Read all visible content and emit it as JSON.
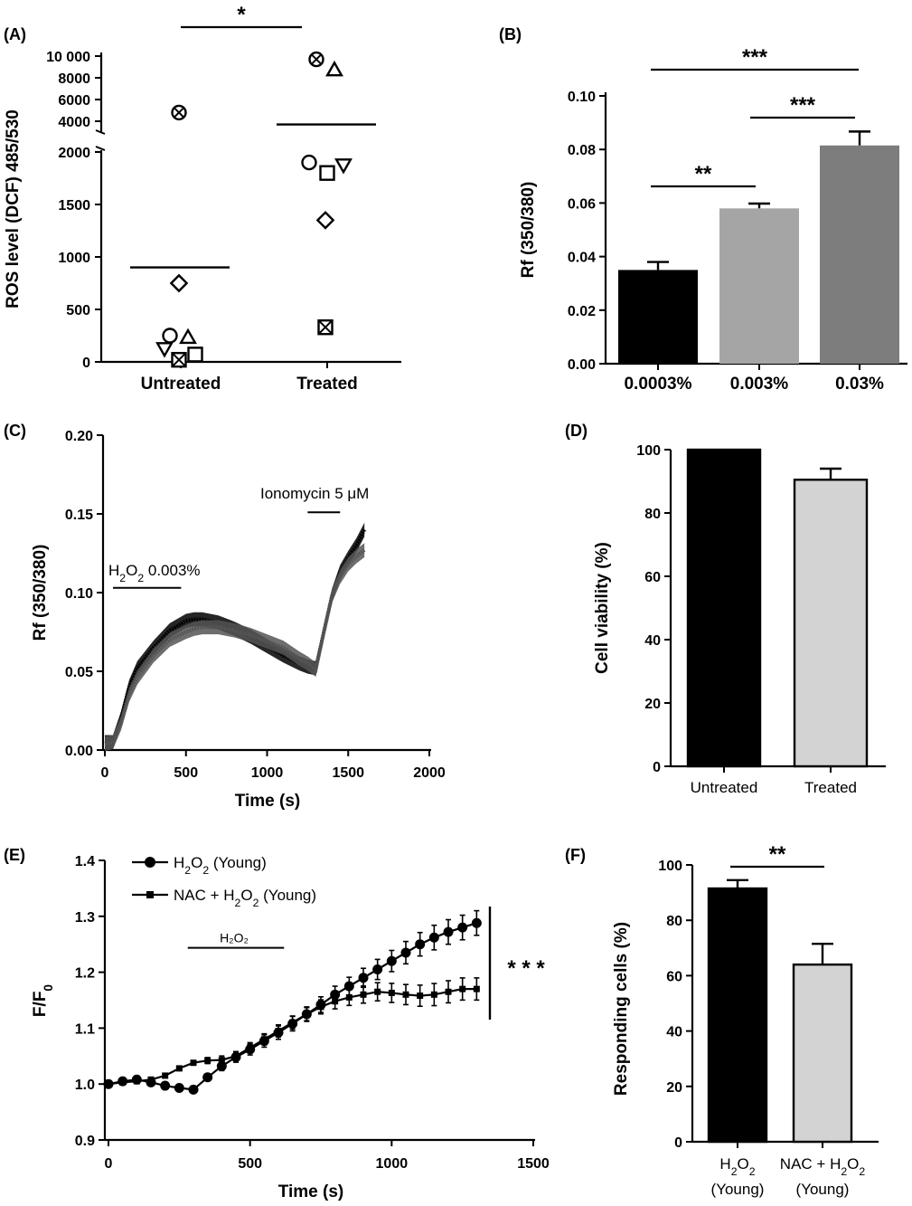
{
  "chart_data": [
    {
      "panel": "(A)",
      "type": "scatter",
      "ylabel": "ROS level (DCF) 485/530",
      "categories": [
        "Untreated",
        "Treated"
      ],
      "y_ticks_lower": [
        "0",
        "500",
        "1000",
        "1500",
        "2000"
      ],
      "y_ticks_upper": [
        "4000",
        "6000",
        "8000",
        "10 000"
      ],
      "ylim_lower": [
        0,
        2000
      ],
      "ylim_upper": [
        3000,
        10000
      ],
      "axis_break": true,
      "points": [
        {
          "category": "Untreated",
          "marker": "circle-x",
          "y": 4800
        },
        {
          "category": "Untreated",
          "marker": "diamond",
          "y": 750
        },
        {
          "category": "Untreated",
          "marker": "circle",
          "y": 250
        },
        {
          "category": "Untreated",
          "marker": "triangle",
          "y": 230
        },
        {
          "category": "Untreated",
          "marker": "triangle-down",
          "y": 130
        },
        {
          "category": "Untreated",
          "marker": "square",
          "y": 70
        },
        {
          "category": "Untreated",
          "marker": "square-x",
          "y": 20
        },
        {
          "category": "Treated",
          "marker": "circle-x",
          "y": 9700
        },
        {
          "category": "Treated",
          "marker": "triangle",
          "y": 8700
        },
        {
          "category": "Treated",
          "marker": "circle",
          "y": 1900
        },
        {
          "category": "Treated",
          "marker": "square",
          "y": 1800
        },
        {
          "category": "Treated",
          "marker": "triangle-down",
          "y": 1880
        },
        {
          "category": "Treated",
          "marker": "diamond",
          "y": 1350
        },
        {
          "category": "Treated",
          "marker": "square-x",
          "y": 330
        }
      ],
      "means": [
        {
          "category": "Untreated",
          "y": 900
        },
        {
          "category": "Treated",
          "y": 3700
        }
      ],
      "significance": "*"
    },
    {
      "panel": "(B)",
      "type": "bar",
      "ylabel": "Rf (350/380)",
      "categories": [
        "0.0003%",
        "0.003%",
        "0.03%"
      ],
      "values": [
        0.035,
        0.058,
        0.0815
      ],
      "errors": [
        0.003,
        0.0018,
        0.0052
      ],
      "colors": [
        "#000000",
        "#a5a5a5",
        "#7d7d7d"
      ],
      "ylim": [
        0,
        0.1
      ],
      "y_ticks": [
        "0.00",
        "0.02",
        "0.04",
        "0.06",
        "0.08",
        "0.10"
      ],
      "significance": [
        {
          "between": [
            "0.0003%",
            "0.003%"
          ],
          "label": "**"
        },
        {
          "between": [
            "0.003%",
            "0.03%"
          ],
          "label": "***"
        },
        {
          "between": [
            "0.0003%",
            "0.03%"
          ],
          "label": "***"
        }
      ]
    },
    {
      "panel": "(C)",
      "type": "line",
      "xlabel": "Time (s)",
      "ylabel": "Rf (350/380)",
      "xlim": [
        0,
        2000
      ],
      "ylim": [
        0,
        0.2
      ],
      "x_ticks": [
        "0",
        "500",
        "1000",
        "1500",
        "2000"
      ],
      "y_ticks": [
        "0.00",
        "0.05",
        "0.10",
        "0.15",
        "0.20"
      ],
      "x": [
        0,
        50,
        100,
        150,
        200,
        300,
        400,
        500,
        550,
        600,
        700,
        800,
        900,
        1000,
        1100,
        1200,
        1250,
        1300,
        1350,
        1400,
        1450,
        1500,
        1550,
        1600
      ],
      "series": [
        {
          "values": [
            0.005,
            0.005,
            0.02,
            0.04,
            0.052,
            0.065,
            0.076,
            0.082,
            0.083,
            0.083,
            0.081,
            0.077,
            0.072,
            0.066,
            0.06,
            0.055,
            0.053,
            0.052,
            0.075,
            0.098,
            0.113,
            0.122,
            0.13,
            0.14
          ]
        },
        {
          "values": [
            0.004,
            0.005,
            0.017,
            0.035,
            0.046,
            0.06,
            0.07,
            0.075,
            0.077,
            0.078,
            0.078,
            0.076,
            0.073,
            0.069,
            0.065,
            0.058,
            0.055,
            0.051,
            0.075,
            0.098,
            0.11,
            0.118,
            0.123,
            0.127
          ]
        }
      ],
      "annotations": [
        {
          "label_parts": [
            "H",
            "2",
            "O",
            "2",
            " 0.003%"
          ],
          "x_start": 50,
          "x_end": 470,
          "y": 0.103
        },
        {
          "label": "Ionomycin 5 μM",
          "x_start": 1250,
          "x_end": 1450,
          "y": 0.151
        }
      ]
    },
    {
      "panel": "(D)",
      "type": "bar",
      "ylabel": "Cell viability (%)",
      "categories": [
        "Untreated",
        "Treated"
      ],
      "values": [
        100,
        90.5
      ],
      "errors": [
        0,
        3.5
      ],
      "colors": [
        "#000000",
        "#d3d3d3"
      ],
      "ylim": [
        0,
        100
      ],
      "y_ticks": [
        "0",
        "20",
        "40",
        "60",
        "80",
        "100"
      ]
    },
    {
      "panel": "(E)",
      "type": "line",
      "xlabel": "Time (s)",
      "ylabel_parts": [
        "F/F",
        "0"
      ],
      "xlim": [
        0,
        1500
      ],
      "ylim": [
        0.9,
        1.4
      ],
      "x_ticks": [
        "0",
        "500",
        "1000",
        "1500"
      ],
      "y_ticks": [
        "0.9",
        "1.0",
        "1.1",
        "1.2",
        "1.3",
        "1.4"
      ],
      "x": [
        0,
        50,
        100,
        150,
        200,
        250,
        300,
        350,
        400,
        450,
        500,
        550,
        600,
        650,
        700,
        750,
        800,
        850,
        900,
        950,
        1000,
        1050,
        1100,
        1150,
        1200,
        1250,
        1300
      ],
      "series": [
        {
          "legend_parts": [
            "H",
            "2",
            "O",
            "2",
            " (Young)"
          ],
          "marker": "circle",
          "values": [
            1.0,
            1.005,
            1.008,
            1.003,
            0.997,
            0.993,
            0.99,
            1.012,
            1.032,
            1.048,
            1.062,
            1.077,
            1.092,
            1.108,
            1.125,
            1.142,
            1.16,
            1.175,
            1.19,
            1.205,
            1.22,
            1.235,
            1.25,
            1.262,
            1.272,
            1.28,
            1.288
          ]
        },
        {
          "legend_parts": [
            "NAC + H",
            "2",
            "O",
            "2",
            " (Young)"
          ],
          "marker": "square",
          "values": [
            1.0,
            1.003,
            1.005,
            1.008,
            1.015,
            1.028,
            1.038,
            1.042,
            1.043,
            1.05,
            1.065,
            1.08,
            1.095,
            1.11,
            1.125,
            1.138,
            1.148,
            1.155,
            1.16,
            1.165,
            1.163,
            1.16,
            1.158,
            1.16,
            1.165,
            1.17,
            1.17
          ]
        }
      ],
      "annotations": [
        {
          "label": "H₂O₂",
          "x_start": 280,
          "x_end": 620,
          "y": 1.2
        }
      ],
      "significance": "* * *"
    },
    {
      "panel": "(F)",
      "type": "bar",
      "ylabel": "Responding cells (%)",
      "categories_parts": [
        {
          "line1": [
            "H",
            "2",
            "O",
            "2"
          ],
          "line2": "(Young)"
        },
        {
          "line1": [
            "NAC + H",
            "2",
            "O",
            "2"
          ],
          "line2": "(Young)"
        }
      ],
      "values": [
        91.5,
        64
      ],
      "errors": [
        3,
        7.5
      ],
      "colors": [
        "#000000",
        "#d3d3d3"
      ],
      "ylim": [
        0,
        100
      ],
      "y_ticks": [
        "0",
        "20",
        "40",
        "60",
        "80",
        "100"
      ],
      "significance": "**"
    }
  ]
}
